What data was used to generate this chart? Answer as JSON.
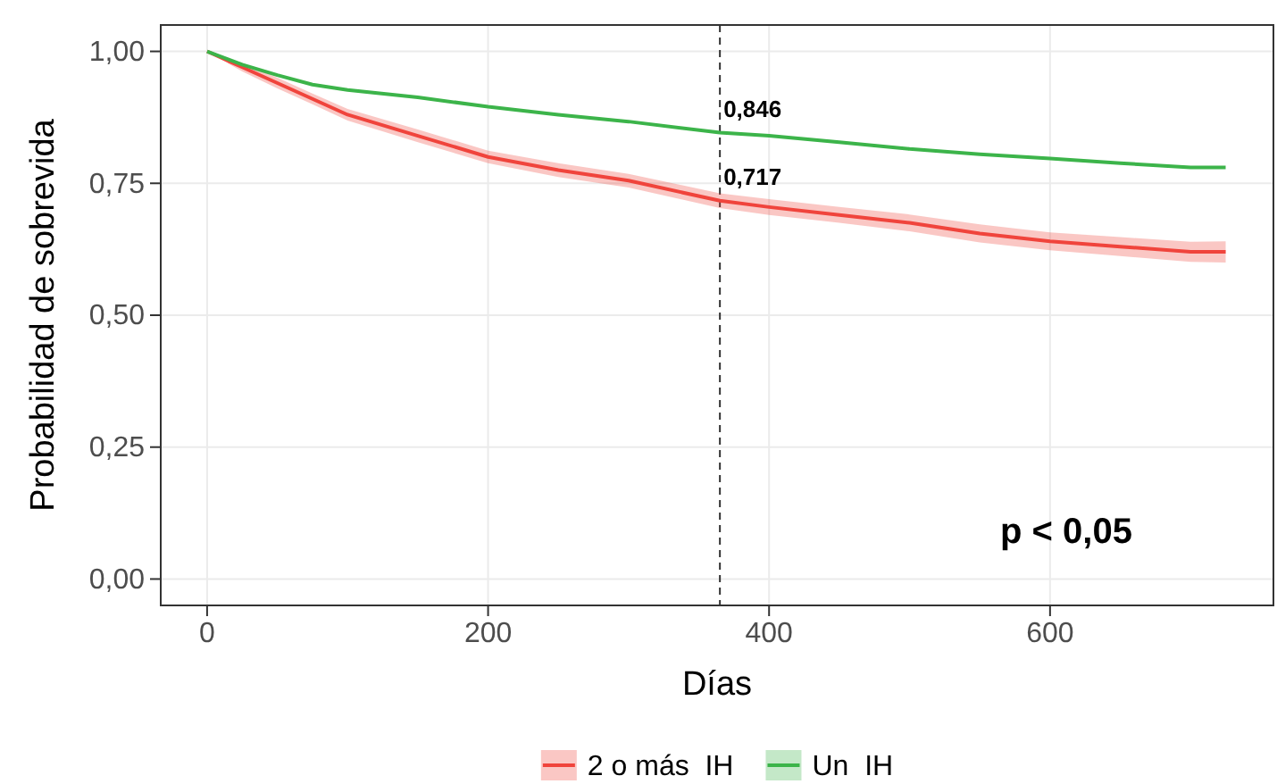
{
  "chart_data": {
    "type": "line",
    "xlabel": "Días",
    "ylabel": "Probabilidad de sobrevida",
    "xlim": [
      -33,
      759
    ],
    "xticks": [
      0,
      200,
      400,
      600
    ],
    "ylim": [
      -0.05,
      1.05
    ],
    "yticks": [
      {
        "value": 0,
        "label": "0,00"
      },
      {
        "value": 0.25,
        "label": "0,25"
      },
      {
        "value": 0.5,
        "label": "0,50"
      },
      {
        "value": 0.75,
        "label": "0,75"
      },
      {
        "value": 1,
        "label": "1,00"
      }
    ],
    "grid": true,
    "legend": "bottom",
    "line_style": "solid",
    "marker": "none",
    "x": [
      0,
      25,
      50,
      75,
      100,
      150,
      200,
      250,
      300,
      365,
      400,
      450,
      500,
      550,
      600,
      650,
      700,
      725
    ],
    "series": [
      {
        "name": "2 o más  IH",
        "color": "#f0443c",
        "values": [
          1,
          0.97,
          0.94,
          0.91,
          0.88,
          0.84,
          0.8,
          0.775,
          0.755,
          0.717,
          0.705,
          0.69,
          0.675,
          0.655,
          0.64,
          0.63,
          0.62,
          0.62
        ],
        "lower": [
          1,
          0.962,
          0.93,
          0.9,
          0.869,
          0.828,
          0.788,
          0.762,
          0.742,
          0.703,
          0.69,
          0.675,
          0.659,
          0.638,
          0.623,
          0.612,
          0.601,
          0.6
        ],
        "upper": [
          1,
          0.978,
          0.95,
          0.92,
          0.891,
          0.852,
          0.812,
          0.788,
          0.768,
          0.731,
          0.72,
          0.705,
          0.691,
          0.672,
          0.657,
          0.648,
          0.639,
          0.64
        ]
      },
      {
        "name": "Un  IH",
        "color": "#3cb44a",
        "values": [
          1,
          0.975,
          0.955,
          0.937,
          0.927,
          0.913,
          0.895,
          0.88,
          0.867,
          0.846,
          0.84,
          0.828,
          0.815,
          0.805,
          0.797,
          0.788,
          0.78,
          0.78
        ]
      }
    ],
    "ref_lines": [
      {
        "axis": "x",
        "value": 365,
        "label": null,
        "line_style": "dashed",
        "color": "#333333"
      }
    ],
    "annotations": [
      {
        "text": "0,846",
        "x": 365,
        "y": 0.846
      },
      {
        "text": "0,717",
        "x": 365,
        "y": 0.717
      },
      "p < 0,05"
    ]
  }
}
